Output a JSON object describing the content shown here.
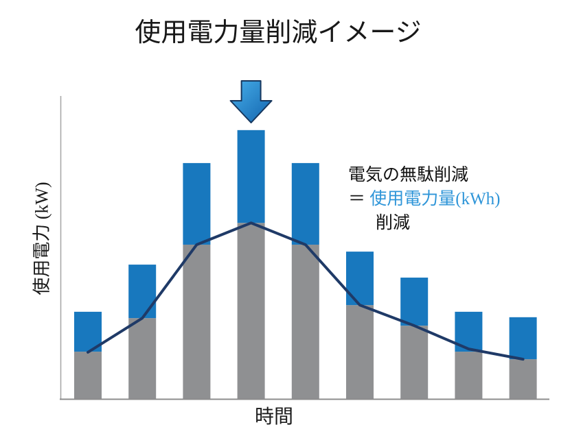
{
  "chart_data": {
    "type": "bar",
    "stacked": true,
    "title": "使用電力量削減イメージ",
    "xlabel": "時間",
    "ylabel": "使用電力 (kW)",
    "x_tick_labels": [],
    "y_tick_labels": [],
    "n_bars": 9,
    "units": "relative 0-100 scale (axes carry no numeric ticks)",
    "grid": false,
    "legend": "none",
    "ylim": [
      0,
      100
    ],
    "series": [
      {
        "name": "gray-base-usage",
        "values": [
          15.4,
          26.5,
          50.8,
          58.0,
          50.8,
          30.8,
          24.0,
          15.4,
          12.9
        ]
      },
      {
        "name": "blue-reduced-waste",
        "values": [
          13.2,
          17.7,
          27.0,
          30.7,
          27.0,
          17.7,
          15.9,
          13.2,
          13.9
        ]
      }
    ],
    "bar_totals": [
      28.6,
      44.2,
      77.8,
      88.7,
      77.8,
      48.5,
      39.9,
      28.6,
      26.8
    ],
    "line_series": {
      "name": "target-usage-line",
      "values": [
        15.2,
        26.5,
        50.8,
        58.0,
        50.8,
        30.8,
        24.0,
        16.3,
        12.9
      ]
    },
    "arrow_marker": {
      "shape": "down-arrow",
      "bar_index": 3
    }
  },
  "annotation": {
    "line1": "電気の無駄削減",
    "equals": "＝",
    "blue_text": "使用電力量(kWh)",
    "line3": "削減"
  },
  "colors": {
    "bar_blue": "#1878BE",
    "bar_gray": "#8F9092",
    "line_navy": "#1F3A67",
    "annotation_blue": "#2E95D8",
    "arrow_light": "#47AFEA",
    "arrow_dark": "#1263AD",
    "arrow_border": "#17375E",
    "axis_left": "#A8A8A8",
    "axis_bottom": "#8C8C8C",
    "title_text": "#181818",
    "body_text": "#111111"
  }
}
